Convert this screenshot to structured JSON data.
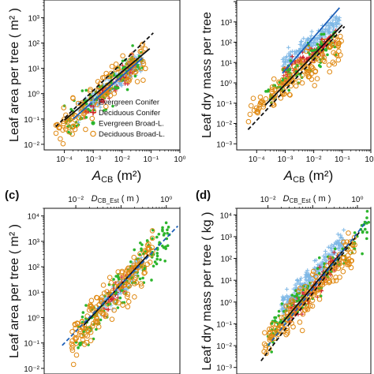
{
  "figure": {
    "panel_c_label": "(c)",
    "panel_d_label": "(d)"
  },
  "legend": {
    "entries": [
      {
        "label": "Evergreen Conifer",
        "color": "#7fb8e6",
        "marker": "plus"
      },
      {
        "label": "Deciduous Conifer",
        "color": "#d0202a",
        "marker": "plus"
      },
      {
        "label": "Evergreen Broad-L.",
        "color": "#2db52d",
        "marker": "dot"
      },
      {
        "label": "Deciduous Broad-L.",
        "color": "#e08a14",
        "marker": "circle"
      }
    ]
  },
  "chart_data": [
    {
      "type": "scatter",
      "panel": "a",
      "xlabel_main": "A",
      "xlabel_sub": "CB",
      "xlabel_unit": "(m²)",
      "ylabel": "Leaf area per tree ( m² )",
      "xscale": "log",
      "yscale": "log",
      "xlim": [
        2e-05,
        1
      ],
      "ylim": [
        0.006,
        5000
      ],
      "x_tick_labels": [
        "10⁻⁴",
        "10⁻³",
        "10⁻²",
        "10⁻¹",
        "10⁰"
      ],
      "y_tick_labels": [
        "10⁻²",
        "10⁻¹",
        "10⁰",
        "10¹",
        "10²",
        "10³"
      ],
      "legend_position": "bottom-right",
      "series": [
        {
          "key": "ec",
          "n": 140,
          "xrange": [
            0.0003,
            0.05
          ],
          "a": 500,
          "b": 1.0,
          "sd": 0.2
        },
        {
          "key": "dc",
          "n": 80,
          "xrange": [
            0.0005,
            0.03
          ],
          "a": 450,
          "b": 1.0,
          "sd": 0.2
        },
        {
          "key": "eb",
          "n": 110,
          "xrange": [
            0.0001,
            0.06
          ],
          "a": 500,
          "b": 1.0,
          "sd": 0.3
        },
        {
          "key": "db",
          "n": 120,
          "xrange": [
            5e-05,
            0.08
          ],
          "a": 500,
          "b": 1.0,
          "sd": 0.35
        }
      ],
      "fits": [
        {
          "style": "solid",
          "color": "#111111",
          "x": [
            0.0001,
            0.09
          ],
          "y": [
            0.09,
            60
          ]
        },
        {
          "style": "dashed",
          "color": "#111111",
          "x": [
            5e-05,
            0.12
          ],
          "y": [
            0.05,
            250
          ]
        },
        {
          "style": "solid",
          "color": "#1c5fb8",
          "x": [
            0.0002,
            0.05
          ],
          "y": [
            0.1,
            25
          ]
        }
      ]
    },
    {
      "type": "scatter",
      "panel": "b",
      "xlabel_main": "A",
      "xlabel_sub": "CB",
      "xlabel_unit": "(m²)",
      "ylabel": "Leaf dry mass per tree",
      "xscale": "log",
      "yscale": "log",
      "xlim": [
        2e-05,
        1
      ],
      "ylim": [
        0.0005,
        12000
      ],
      "x_tick_labels": [
        "10⁻⁴",
        "10⁻³",
        "10⁻²",
        "10⁻¹",
        "10⁰"
      ],
      "y_tick_labels": [
        "10⁻³",
        "10⁻²",
        "10⁻¹",
        "10⁰",
        "10¹",
        "10²",
        "10³"
      ],
      "series": [
        {
          "key": "ec",
          "n": 180,
          "xrange": [
            0.0008,
            0.08
          ],
          "a": 20000,
          "b": 1.1,
          "sd": 0.2
        },
        {
          "key": "dc",
          "n": 100,
          "xrange": [
            0.0008,
            0.06
          ],
          "a": 5000,
          "b": 1.1,
          "sd": 0.2
        },
        {
          "key": "eb",
          "n": 90,
          "xrange": [
            0.0002,
            0.06
          ],
          "a": 3000,
          "b": 1.1,
          "sd": 0.35
        },
        {
          "key": "db",
          "n": 140,
          "xrange": [
            5e-05,
            0.1
          ],
          "a": 1500,
          "b": 1.1,
          "sd": 0.4
        }
      ],
      "fits": [
        {
          "style": "solid",
          "color": "#111111",
          "x": [
            0.0002,
            0.1
          ],
          "y": [
            0.08,
            700
          ]
        },
        {
          "style": "dashed",
          "color": "#111111",
          "x": [
            5e-05,
            0.12
          ],
          "y": [
            0.005,
            600
          ]
        },
        {
          "style": "solid",
          "color": "#1c5fb8",
          "x": [
            0.0008,
            0.08
          ],
          "y": [
            3,
            5000
          ]
        }
      ]
    },
    {
      "type": "scatter",
      "panel": "c",
      "xlabel_main": "D",
      "xlabel_sub": "CB_Est",
      "xlabel_unit": "( m )",
      "ylabel": "Leaf area per tree ( m² )",
      "xscale": "log",
      "yscale": "log",
      "xlim": [
        0.002,
        2
      ],
      "ylim": [
        0.006,
        20000
      ],
      "x_tick_labels": [
        "10⁻²",
        "10⁰"
      ],
      "y_tick_labels": [
        "10⁻²",
        "10⁻¹",
        "10⁰",
        "10¹",
        "10²",
        "10³",
        "10⁴"
      ],
      "series": [
        {
          "key": "ec",
          "n": 80,
          "xrange": [
            0.03,
            0.3
          ],
          "a": 1500,
          "b": 2.0,
          "sd": 0.25
        },
        {
          "key": "dc",
          "n": 40,
          "xrange": [
            0.04,
            0.2
          ],
          "a": 1500,
          "b": 2.0,
          "sd": 0.2
        },
        {
          "key": "eb",
          "n": 160,
          "xrange": [
            0.01,
            1.2
          ],
          "a": 1500,
          "b": 2.0,
          "sd": 0.4
        },
        {
          "key": "db",
          "n": 170,
          "xrange": [
            0.008,
            0.5
          ],
          "a": 1500,
          "b": 2.0,
          "sd": 0.4
        }
      ],
      "fits": [
        {
          "style": "solid",
          "color": "#111111",
          "x": [
            0.015,
            0.4
          ],
          "y": [
            0.5,
            300
          ]
        },
        {
          "style": "dashed",
          "color": "#1c5fb8",
          "x": [
            0.005,
            1.8
          ],
          "y": [
            0.08,
            4000
          ]
        }
      ]
    },
    {
      "type": "scatter",
      "panel": "d",
      "xlabel_main": "D",
      "xlabel_sub": "CB_Est",
      "xlabel_unit": "( m )",
      "ylabel": "Leaf dry mass per tree ( kg )",
      "xscale": "log",
      "yscale": "log",
      "xlim": [
        0.002,
        2
      ],
      "ylim": [
        0.0005,
        20000
      ],
      "x_tick_labels": [
        "10⁻²",
        "10⁰"
      ],
      "y_tick_labels": [
        "10⁻³",
        "10⁻²",
        "10⁻¹",
        "10⁰",
        "10¹",
        "10²",
        "10³",
        "10⁴"
      ],
      "series": [
        {
          "key": "ec",
          "n": 220,
          "xrange": [
            0.02,
            0.5
          ],
          "a": 3000,
          "b": 2.2,
          "sd": 0.25
        },
        {
          "key": "dc",
          "n": 110,
          "xrange": [
            0.03,
            0.4
          ],
          "a": 600,
          "b": 2.2,
          "sd": 0.25
        },
        {
          "key": "eb",
          "n": 120,
          "xrange": [
            0.01,
            1.8
          ],
          "a": 800,
          "b": 2.2,
          "sd": 0.4
        },
        {
          "key": "db",
          "n": 170,
          "xrange": [
            0.008,
            0.9
          ],
          "a": 400,
          "b": 2.2,
          "sd": 0.4
        }
      ],
      "fits": [
        {
          "style": "solid",
          "color": "#111111",
          "x": [
            0.02,
            0.6
          ],
          "y": [
            0.1,
            400
          ]
        },
        {
          "style": "dashed",
          "color": "#111111",
          "x": [
            0.007,
            1.2
          ],
          "y": [
            0.002,
            2000
          ]
        },
        {
          "style": "dashed",
          "color": "#1c5fb8",
          "x": [
            0.01,
            1.6
          ],
          "y": [
            0.01,
            5000
          ]
        }
      ]
    }
  ]
}
